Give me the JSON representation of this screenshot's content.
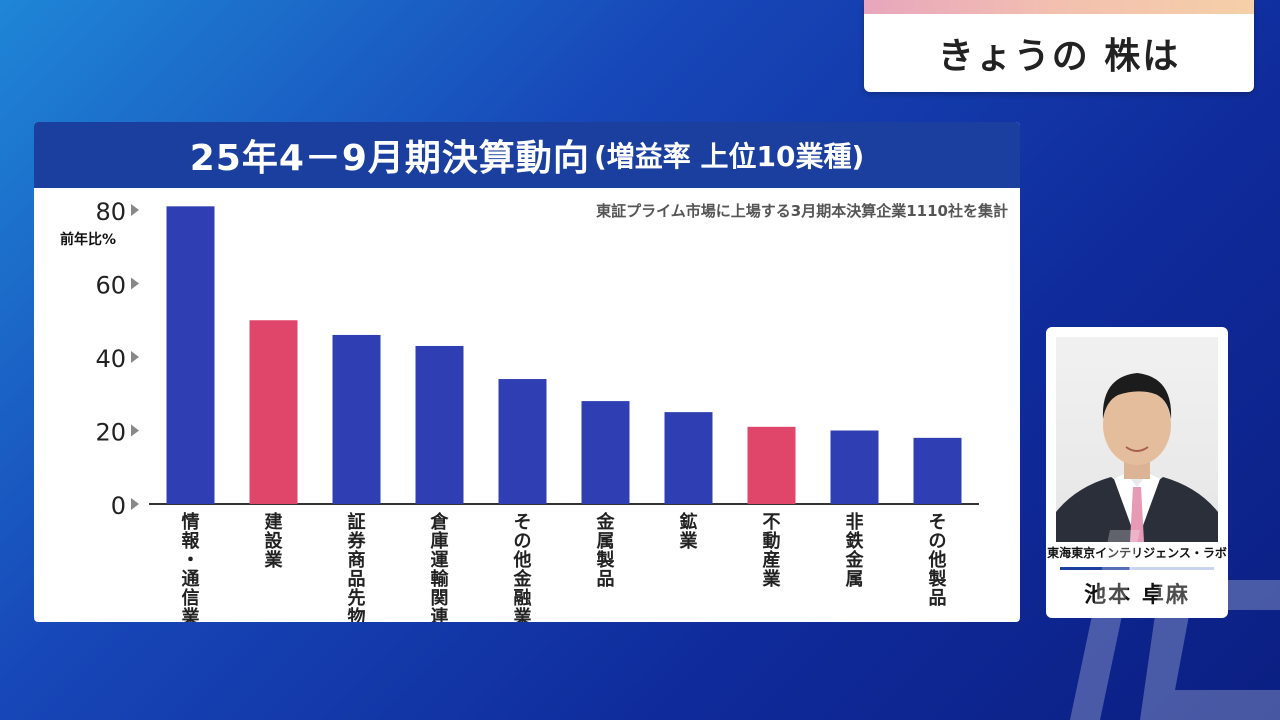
{
  "corner_title": "きょうの 株は",
  "chart_title": "25年4－9月期決算動向",
  "chart_subtitle": "(増益率 上位10業種)",
  "note": "東証プライム市場に上場する3月期本決算企業1110社を集計",
  "colors": {
    "header": "#1a3f9e",
    "bar_blue": "#2f3fb3",
    "bar_red": "#e0456a",
    "accent_red": "#e0456a"
  },
  "chart_data": {
    "type": "bar",
    "ylabel": "前年比%",
    "ylim": [
      0,
      80
    ],
    "yticks": [
      0,
      20,
      40,
      60,
      80
    ],
    "categories": [
      "情報・通信業",
      "建設業",
      "証券商品先物",
      "倉庫運輸関連",
      "その他金融業",
      "金属製品",
      "鉱業",
      "不動産業",
      "非鉄金属",
      "その他製品"
    ],
    "values": [
      81,
      50,
      46,
      43,
      34,
      28,
      25,
      21,
      20,
      18
    ],
    "highlighted": [
      false,
      true,
      false,
      false,
      false,
      false,
      false,
      true,
      false,
      false
    ],
    "grid": false,
    "legend": "none"
  },
  "presenter": {
    "org": "東海東京インテリジェンス・ラボ",
    "name": "池本 卓麻"
  }
}
